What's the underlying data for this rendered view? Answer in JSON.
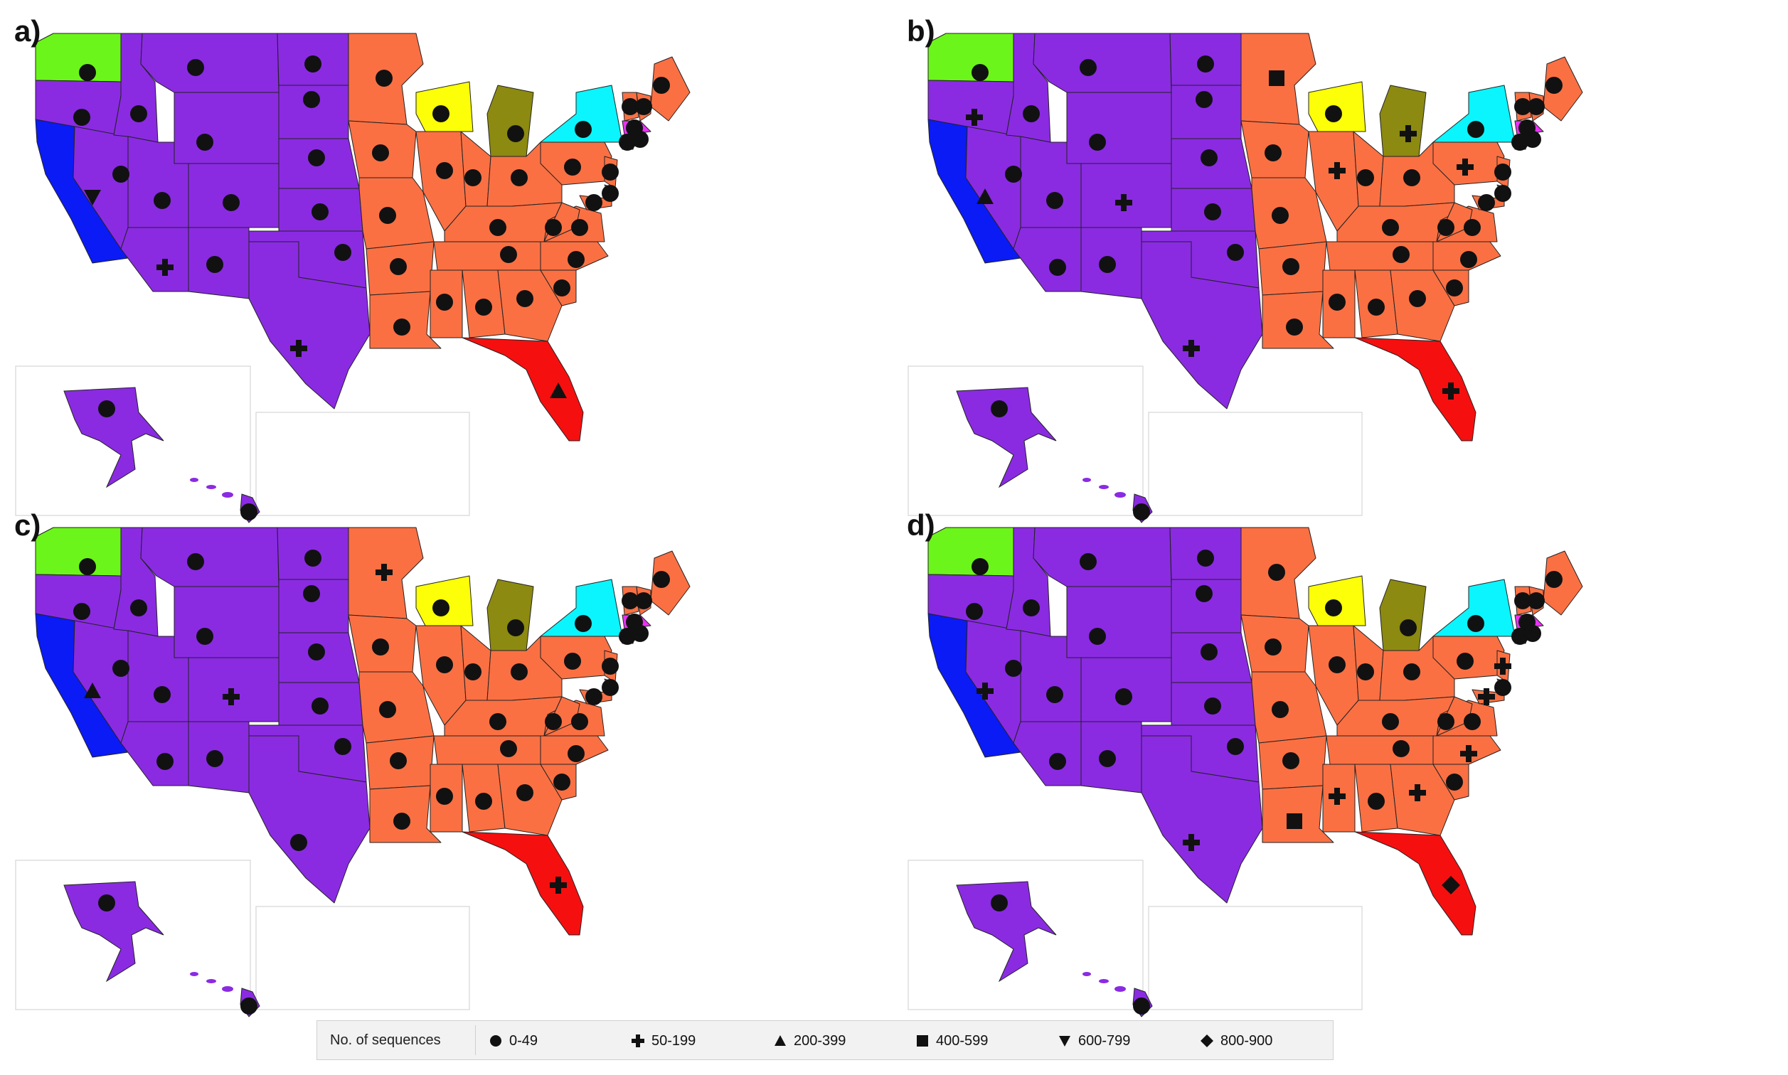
{
  "panels": [
    {
      "label": "a)",
      "symbols": {
        "WA": "0-49",
        "OR": "0-49",
        "CA": "600-799",
        "NV": "0-49",
        "ID": "0-49",
        "MT": "0-49",
        "WY": "0-49",
        "UT": "0-49",
        "CO": "0-49",
        "AZ": "50-199",
        "NM": "0-49",
        "ND": "0-49",
        "SD": "0-49",
        "NE": "0-49",
        "KS": "0-49",
        "OK": "0-49",
        "TX": "50-199",
        "MN": "0-49",
        "IA": "0-49",
        "MO": "0-49",
        "AR": "0-49",
        "LA": "0-49",
        "WI": "0-49",
        "IL": "0-49",
        "MI": "0-49",
        "IN": "0-49",
        "OH": "0-49",
        "KY": "0-49",
        "TN": "0-49",
        "MS": "0-49",
        "AL": "0-49",
        "GA": "0-49",
        "FL": "200-399",
        "SC": "0-49",
        "NC": "0-49",
        "VA": "0-49",
        "WV": "0-49",
        "PA": "0-49",
        "NY": "0-49",
        "ME": "0-49",
        "NH": "0-49",
        "VT": "0-49",
        "MA": "0-49",
        "CT": "0-49",
        "RI": "0-49",
        "NJ": "0-49",
        "DE": "0-49",
        "MD": "0-49",
        "AK": "0-49",
        "HI": "0-49"
      }
    },
    {
      "label": "b)",
      "symbols": {
        "WA": "0-49",
        "OR": "50-199",
        "CA": "200-399",
        "NV": "0-49",
        "ID": "0-49",
        "MT": "0-49",
        "WY": "0-49",
        "UT": "0-49",
        "CO": "50-199",
        "AZ": "0-49",
        "NM": "0-49",
        "ND": "0-49",
        "SD": "0-49",
        "NE": "0-49",
        "KS": "0-49",
        "OK": "0-49",
        "TX": "50-199",
        "MN": "400-599",
        "IA": "0-49",
        "MO": "0-49",
        "AR": "0-49",
        "LA": "0-49",
        "WI": "0-49",
        "IL": "50-199",
        "MI": "50-199",
        "IN": "0-49",
        "OH": "0-49",
        "KY": "0-49",
        "TN": "0-49",
        "MS": "0-49",
        "AL": "0-49",
        "GA": "0-49",
        "FL": "50-199",
        "SC": "0-49",
        "NC": "0-49",
        "VA": "0-49",
        "WV": "0-49",
        "PA": "50-199",
        "NY": "0-49",
        "ME": "0-49",
        "NH": "0-49",
        "VT": "0-49",
        "MA": "0-49",
        "CT": "0-49",
        "RI": "0-49",
        "NJ": "0-49",
        "DE": "0-49",
        "MD": "0-49",
        "AK": "0-49",
        "HI": "0-49"
      }
    },
    {
      "label": "c)",
      "symbols": {
        "WA": "0-49",
        "OR": "0-49",
        "CA": "200-399",
        "NV": "0-49",
        "ID": "0-49",
        "MT": "0-49",
        "WY": "0-49",
        "UT": "0-49",
        "CO": "50-199",
        "AZ": "0-49",
        "NM": "0-49",
        "ND": "0-49",
        "SD": "0-49",
        "NE": "0-49",
        "KS": "0-49",
        "OK": "0-49",
        "TX": "0-49",
        "MN": "50-199",
        "IA": "0-49",
        "MO": "0-49",
        "AR": "0-49",
        "LA": "0-49",
        "WI": "0-49",
        "IL": "0-49",
        "MI": "0-49",
        "IN": "0-49",
        "OH": "0-49",
        "KY": "0-49",
        "TN": "0-49",
        "MS": "0-49",
        "AL": "0-49",
        "GA": "0-49",
        "FL": "50-199",
        "SC": "0-49",
        "NC": "0-49",
        "VA": "0-49",
        "WV": "0-49",
        "PA": "0-49",
        "NY": "0-49",
        "ME": "0-49",
        "NH": "0-49",
        "VT": "0-49",
        "MA": "0-49",
        "CT": "0-49",
        "RI": "0-49",
        "NJ": "0-49",
        "DE": "0-49",
        "MD": "0-49",
        "AK": "0-49",
        "HI": "0-49"
      }
    },
    {
      "label": "d)",
      "symbols": {
        "WA": "0-49",
        "OR": "0-49",
        "CA": "50-199",
        "NV": "0-49",
        "ID": "0-49",
        "MT": "0-49",
        "WY": "0-49",
        "UT": "0-49",
        "CO": "0-49",
        "AZ": "0-49",
        "NM": "0-49",
        "ND": "0-49",
        "SD": "0-49",
        "NE": "0-49",
        "KS": "0-49",
        "OK": "0-49",
        "TX": "50-199",
        "MN": "0-49",
        "IA": "0-49",
        "MO": "0-49",
        "AR": "0-49",
        "LA": "400-599",
        "WI": "0-49",
        "IL": "0-49",
        "MI": "0-49",
        "IN": "0-49",
        "OH": "0-49",
        "KY": "0-49",
        "TN": "0-49",
        "MS": "50-199",
        "AL": "0-49",
        "GA": "50-199",
        "FL": "800-900",
        "SC": "0-49",
        "NC": "50-199",
        "VA": "0-49",
        "WV": "0-49",
        "PA": "0-49",
        "NY": "0-49",
        "ME": "0-49",
        "NH": "0-49",
        "VT": "0-49",
        "MA": "0-49",
        "CT": "0-49",
        "RI": "0-49",
        "NJ": "50-199",
        "DE": "0-49",
        "MD": "50-199",
        "AK": "0-49",
        "HI": "0-49"
      }
    }
  ],
  "regions": {
    "purple": {
      "color": "#8a2be2",
      "states": [
        "OR",
        "NV",
        "ID",
        "MT",
        "WY",
        "UT",
        "CO",
        "AZ",
        "NM",
        "ND",
        "SD",
        "NE",
        "KS",
        "OK",
        "TX",
        "AK",
        "HI"
      ]
    },
    "orange": {
      "color": "#fa7043",
      "states": [
        "MN",
        "IA",
        "MO",
        "AR",
        "LA",
        "IL",
        "IN",
        "OH",
        "KY",
        "TN",
        "MS",
        "AL",
        "GA",
        "SC",
        "NC",
        "VA",
        "WV",
        "PA",
        "ME",
        "NH",
        "VT",
        "CT",
        "RI",
        "NJ",
        "DE",
        "MD"
      ]
    },
    "green": {
      "color": "#6cf51a",
      "states": [
        "WA"
      ]
    },
    "blue": {
      "color": "#0a1bf5",
      "states": [
        "CA"
      ]
    },
    "yellow": {
      "color": "#fcff07",
      "states": [
        "WI"
      ]
    },
    "olive": {
      "color": "#8c8a10",
      "states": [
        "MI"
      ]
    },
    "cyan": {
      "color": "#0af5fd",
      "states": [
        "NY"
      ]
    },
    "red": {
      "color": "#f60f0f",
      "states": [
        "FL"
      ]
    },
    "magenta": {
      "color": "#ea32f5",
      "states": [
        "MA"
      ]
    }
  },
  "legend": {
    "title": "No. of sequences",
    "items": [
      {
        "label": "0-49",
        "shape": "circle"
      },
      {
        "label": "50-199",
        "shape": "plus"
      },
      {
        "label": "200-399",
        "shape": "triangle-up"
      },
      {
        "label": "400-599",
        "shape": "square"
      },
      {
        "label": "600-799",
        "shape": "triangle-down"
      },
      {
        "label": "800-900",
        "shape": "diamond"
      }
    ]
  }
}
